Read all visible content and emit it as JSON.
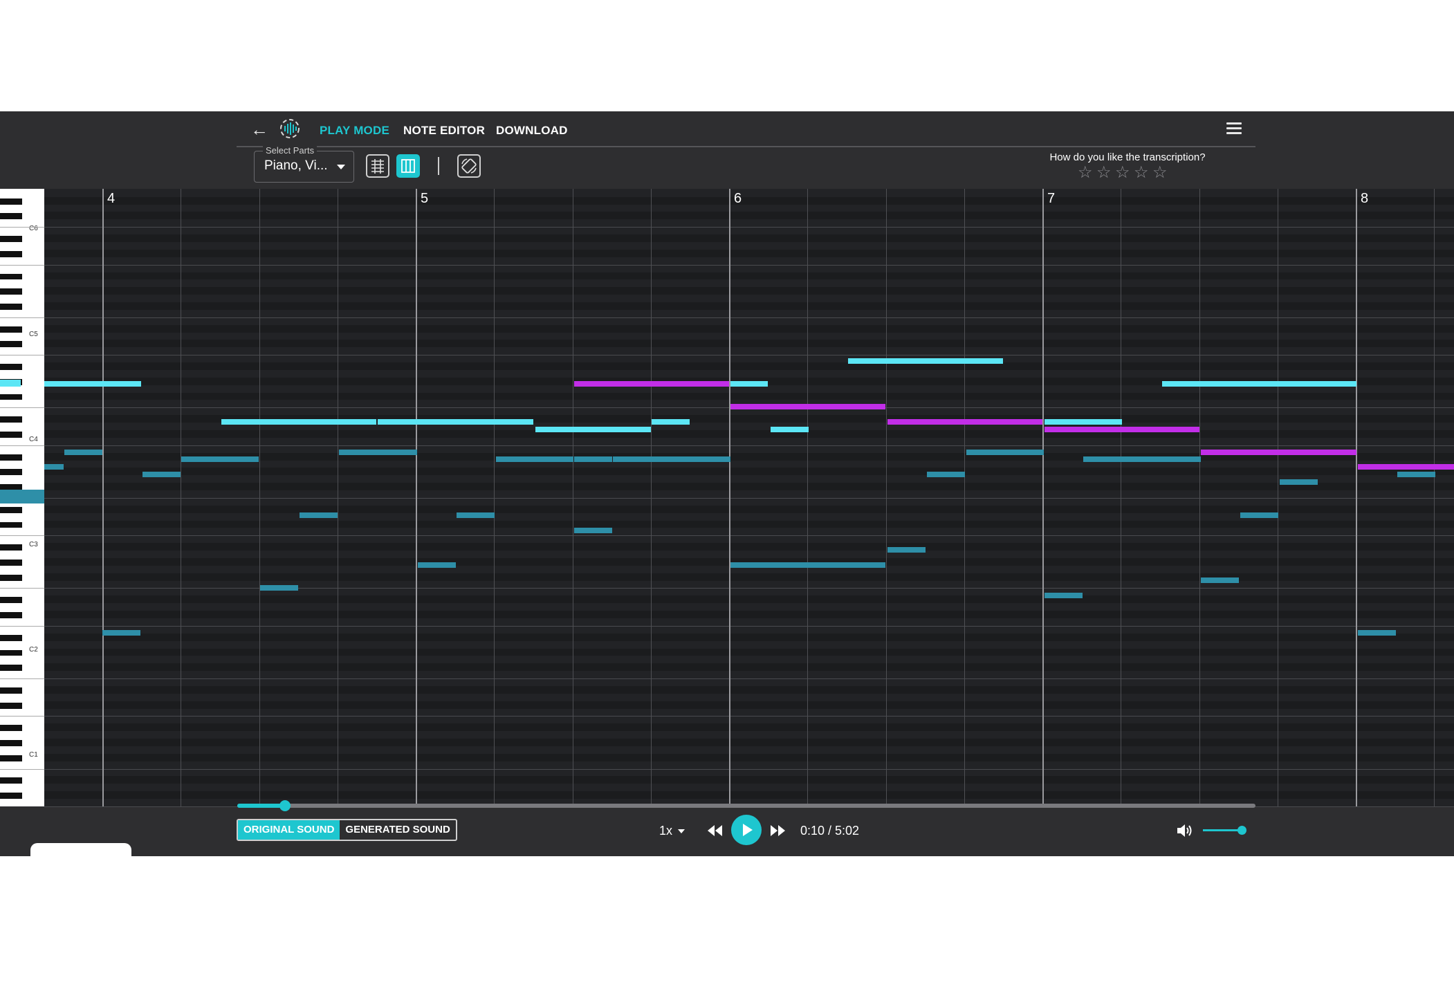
{
  "nav": {
    "tabs": [
      "PLAY MODE",
      "NOTE EDITOR",
      "DOWNLOAD"
    ],
    "active_tab": "PLAY MODE"
  },
  "toolbar": {
    "select_parts_label": "Select Parts",
    "select_parts_value": "Piano, Vi..."
  },
  "rating": {
    "question": "How do you like the transcription?",
    "stars_total": 5,
    "stars_selected": 0
  },
  "roll": {
    "measure_numbers": [
      "4",
      "5",
      "6",
      "7",
      "8"
    ],
    "octave_labels": [
      "C6",
      "C5",
      "C4",
      "C3",
      "C2",
      "C1"
    ]
  },
  "player": {
    "original_sound_label": "ORIGINAL SOUND",
    "generated_sound_label": "GENERATED SOUND",
    "active_sound": "ORIGINAL SOUND",
    "speed": "1x",
    "time": "0:10 / 5:02",
    "progress_fraction": 0.033,
    "volume_fraction": 1.0
  },
  "colors": {
    "accent": "#1ec6cf",
    "lead_note": "#5ce6f5",
    "highlight_note": "#c22ee8",
    "bass_note": "#2e8fa8",
    "background": "#2e2e30"
  },
  "icons": [
    "back-arrow-icon",
    "logo-icon",
    "menu-icon",
    "mixer-icon",
    "piano-roll-icon",
    "rotate-icon",
    "star-icon",
    "rewind-icon",
    "play-icon",
    "fast-forward-icon",
    "volume-icon"
  ]
}
